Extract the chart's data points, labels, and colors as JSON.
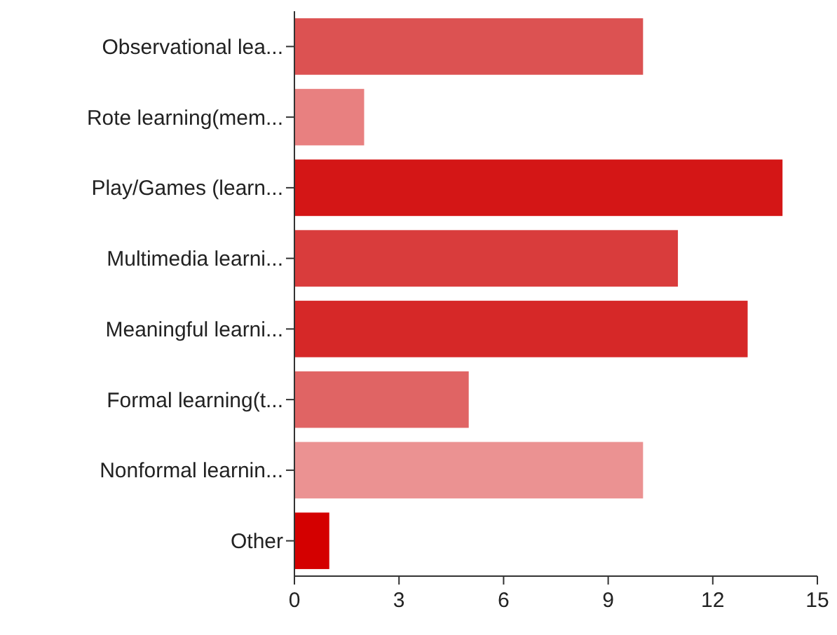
{
  "chart_data": {
    "type": "bar",
    "orientation": "horizontal",
    "categories": [
      "Observational lea...",
      "Rote learning(mem...",
      "Play/Games (learn...",
      "Multimedia learni...",
      "Meaningful learni...",
      "Formal learning(t...",
      "Nonformal learnin...",
      "Other"
    ],
    "values": [
      10,
      2,
      14,
      11,
      13,
      5,
      10,
      1
    ],
    "colors": [
      "#dc5252",
      "#e88080",
      "#d41616",
      "#d93c3c",
      "#d62828",
      "#e06464",
      "#eb9292",
      "#d40000"
    ],
    "xlim": [
      0,
      15
    ],
    "xticks": [
      0,
      3,
      6,
      9,
      12,
      15
    ],
    "grid": false
  }
}
